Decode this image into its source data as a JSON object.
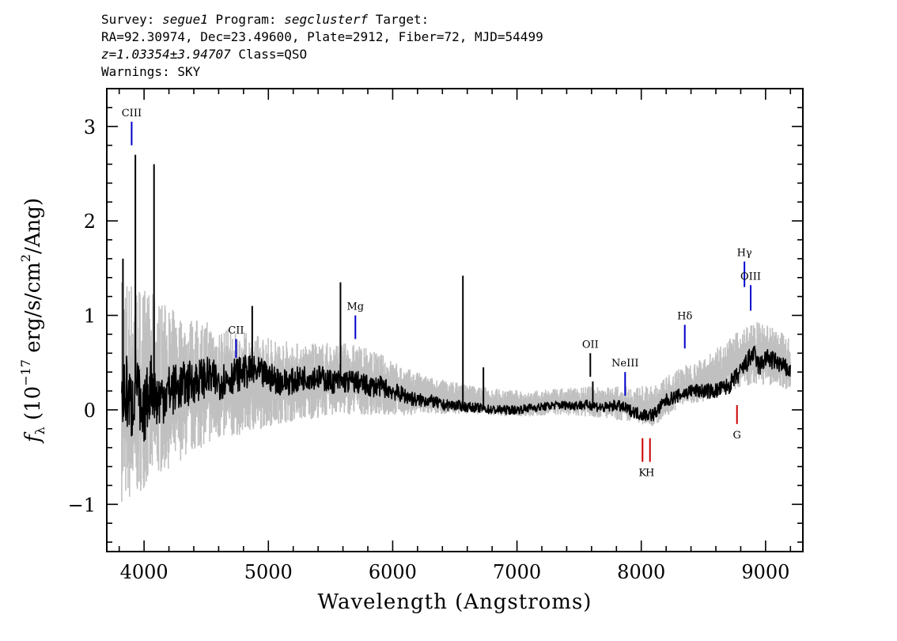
{
  "header": {
    "line1": {
      "survey_label": "Survey: ",
      "survey": "segue1",
      "program_label": " Program: ",
      "program": "segclusterf",
      "target_label": " Target:"
    },
    "line2": "RA=92.30974, Dec=23.49600, Plate=2912, Fiber=72, MJD=54499",
    "line3": {
      "redshift": "z=1.03354±3.94707",
      "class_text": " Class=QSO"
    },
    "line4": "Warnings: SKY"
  },
  "chart_data": {
    "type": "line",
    "xlabel": "Wavelength (Angstroms)",
    "ylabel": "f_λ (10^-17 erg/s/cm^2/Ang)",
    "xlim": [
      3700,
      9300
    ],
    "ylim": [
      -1.5,
      3.4
    ],
    "xticks": [
      4000,
      5000,
      6000,
      7000,
      8000,
      9000
    ],
    "yticks": [
      -1,
      0,
      1,
      2,
      3
    ],
    "grid": false,
    "series": [
      {
        "kind": "error-envelope",
        "color": "#c0c0c0",
        "x": [
          3820,
          3900,
          4000,
          4100,
          4300,
          4500,
          4700,
          4900,
          5100,
          5300,
          5500,
          5700,
          5900,
          6100,
          6300,
          6500,
          6700,
          6900,
          7100,
          7300,
          7500,
          7700,
          7900,
          8100,
          8300,
          8500,
          8700,
          8900,
          9100,
          9200
        ],
        "upper": [
          1.45,
          1.4,
          1.3,
          1.2,
          1.0,
          0.95,
          0.85,
          0.8,
          0.75,
          0.7,
          0.72,
          0.7,
          0.6,
          0.45,
          0.35,
          0.3,
          0.25,
          0.22,
          0.2,
          0.22,
          0.25,
          0.25,
          0.25,
          0.25,
          0.45,
          0.55,
          0.75,
          0.95,
          0.85,
          0.75
        ],
        "lower": [
          -1.4,
          -1.4,
          -1.2,
          -1.05,
          -0.8,
          -0.6,
          -0.5,
          -0.4,
          -0.3,
          -0.25,
          -0.2,
          -0.18,
          -0.18,
          -0.15,
          -0.12,
          -0.1,
          -0.1,
          -0.12,
          -0.12,
          -0.1,
          -0.12,
          -0.15,
          -0.2,
          -0.25,
          -0.05,
          0.0,
          0.1,
          0.15,
          0.15,
          0.05
        ]
      },
      {
        "kind": "flux",
        "color": "#000000",
        "x": [
          3820,
          3860,
          3900,
          3940,
          3980,
          4020,
          4060,
          4100,
          4200,
          4300,
          4400,
          4500,
          4600,
          4700,
          4800,
          4900,
          5000,
          5100,
          5200,
          5300,
          5400,
          5500,
          5600,
          5700,
          5800,
          5900,
          6000,
          6100,
          6200,
          6300,
          6400,
          6500,
          6600,
          6700,
          6800,
          6900,
          7000,
          7100,
          7200,
          7300,
          7400,
          7500,
          7600,
          7700,
          7800,
          7900,
          8000,
          8100,
          8200,
          8300,
          8400,
          8500,
          8600,
          8700,
          8800,
          8850,
          8900,
          8950,
          9000,
          9100,
          9200
        ],
        "y": [
          0.1,
          0.2,
          0.0,
          0.4,
          -0.2,
          0.1,
          0.3,
          0.1,
          0.2,
          0.25,
          0.3,
          0.35,
          0.3,
          0.35,
          0.4,
          0.4,
          0.35,
          0.3,
          0.3,
          0.35,
          0.35,
          0.3,
          0.3,
          0.3,
          0.25,
          0.25,
          0.2,
          0.15,
          0.1,
          0.1,
          0.05,
          0.05,
          0.03,
          0.02,
          0.0,
          0.0,
          0.0,
          0.02,
          0.03,
          0.05,
          0.05,
          0.05,
          0.05,
          0.02,
          0.05,
          0.0,
          -0.05,
          -0.05,
          0.1,
          0.15,
          0.2,
          0.2,
          0.2,
          0.25,
          0.4,
          0.5,
          0.6,
          0.45,
          0.55,
          0.5,
          0.4
        ]
      }
    ],
    "spikes": [
      {
        "x": 3830,
        "y": 1.6
      },
      {
        "x": 3930,
        "y": 2.7
      },
      {
        "x": 4080,
        "y": 2.6
      },
      {
        "x": 4870,
        "y": 1.1
      },
      {
        "x": 5580,
        "y": 1.35
      },
      {
        "x": 6565,
        "y": 1.42
      },
      {
        "x": 6730,
        "y": 0.45
      },
      {
        "x": 7610,
        "y": 0.3
      }
    ],
    "line_markers": [
      {
        "label": "CIII",
        "x": 3900,
        "color": "#0000cc",
        "y1": 2.8,
        "y2": 3.05,
        "label_pos": "above"
      },
      {
        "label": "CII",
        "x": 4740,
        "color": "#0000cc",
        "y1": 0.55,
        "y2": 0.75,
        "label_pos": "above"
      },
      {
        "label": "Mg",
        "x": 5700,
        "color": "#0000cc",
        "y1": 0.75,
        "y2": 1.0,
        "label_pos": "above"
      },
      {
        "label": "OII",
        "x": 7590,
        "color": "#000000",
        "y1": 0.35,
        "y2": 0.6,
        "label_pos": "above"
      },
      {
        "label": "NeIII",
        "x": 7870,
        "color": "#0000cc",
        "y1": 0.15,
        "y2": 0.4,
        "label_pos": "above"
      },
      {
        "label": "Hδ",
        "x": 8350,
        "color": "#0000cc",
        "y1": 0.65,
        "y2": 0.9,
        "label_pos": "above"
      },
      {
        "label": "Hγ",
        "x": 8830,
        "color": "#0000cc",
        "y1": 1.3,
        "y2": 1.57,
        "label_pos": "above"
      },
      {
        "label": "OIII",
        "x": 8880,
        "color": "#0000cc",
        "y1": 1.05,
        "y2": 1.32,
        "label_pos": "above"
      },
      {
        "label": "K",
        "x": 8010,
        "color": "#cc0000",
        "y1": -0.55,
        "y2": -0.3,
        "label_pos": "below"
      },
      {
        "label": "H",
        "x": 8070,
        "color": "#cc0000",
        "y1": -0.55,
        "y2": -0.3,
        "label_pos": "below"
      },
      {
        "label": "G",
        "x": 8770,
        "color": "#cc0000",
        "y1": -0.15,
        "y2": 0.05,
        "label_pos": "below"
      }
    ]
  }
}
